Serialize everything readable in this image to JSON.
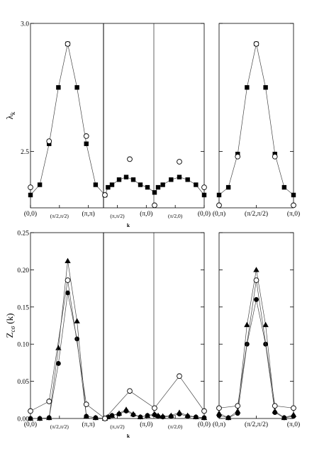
{
  "chart_data": [
    {
      "type": "scatter",
      "ylabel": "λ",
      "ylabel_sub": "k",
      "xlabel": "k",
      "ylim": [
        2.28,
        3.0
      ],
      "yticks": [
        {
          "value": 2.5,
          "label": "2.5"
        },
        {
          "value": 3.0,
          "label": "3.0"
        }
      ],
      "x_ticks_left": [
        "(0,0)",
        "(π/2,π/2)",
        "(π,π)",
        "(π,π/2)",
        "(π,0)",
        "(π/2,0)",
        "(0,0)"
      ],
      "x_ticks_right": [
        "(0,π)",
        "(π/2,π/2)",
        "(π,0)"
      ],
      "series": [
        {
          "marker": "filled-square",
          "line": true,
          "left_values": [
            2.33,
            2.37,
            2.53,
            2.75,
            2.92,
            2.75,
            2.53,
            2.37,
            2.33,
            2.36,
            2.37,
            2.39,
            2.4,
            2.39,
            2.37,
            2.36,
            2.34,
            2.36,
            2.37,
            2.39,
            2.4,
            2.39,
            2.37,
            2.33
          ],
          "right_values": [
            2.33,
            2.36,
            2.49,
            2.75,
            2.92,
            2.75,
            2.49,
            2.36,
            2.33
          ]
        },
        {
          "marker": "open-circle",
          "line": false,
          "left_points": [
            {
              "i": 0,
              "y": 2.36
            },
            {
              "i": 3,
              "y": 2.54
            },
            {
              "i": 6,
              "y": 2.92
            },
            {
              "i": 9,
              "y": 2.56
            },
            {
              "i": 12,
              "y": 2.33
            },
            {
              "i": 16,
              "y": 2.47
            },
            {
              "i": 20,
              "y": 2.29
            },
            {
              "i": 24,
              "y": 2.46
            },
            {
              "i": 28,
              "y": 2.36
            }
          ],
          "right_points": [
            {
              "i": 0,
              "y": 2.29
            },
            {
              "i": 2,
              "y": 2.48
            },
            {
              "i": 4,
              "y": 2.92
            },
            {
              "i": 6,
              "y": 2.48
            },
            {
              "i": 8,
              "y": 2.29
            }
          ]
        }
      ]
    },
    {
      "type": "scatter",
      "ylabel": "Z",
      "ylabel_sub": "cσ",
      "ylabel_suffix": "(k)",
      "xlabel": "k",
      "ylim": [
        0.0,
        0.25
      ],
      "yticks": [
        {
          "value": 0.0,
          "label": "0.00"
        },
        {
          "value": 0.05,
          "label": "0.05"
        },
        {
          "value": 0.1,
          "label": "0.10"
        },
        {
          "value": 0.15,
          "label": "0.15"
        },
        {
          "value": 0.2,
          "label": "0.20"
        },
        {
          "value": 0.25,
          "label": "0.25"
        }
      ],
      "x_ticks_left": [
        "(0,0)",
        "(π/2,π/2)",
        "(π,π)",
        "(π,π/2)",
        "(π,0)",
        "(π/2,0)",
        "(0,0)"
      ],
      "x_ticks_right": [
        "(0,π)",
        "(π/2,π/2)",
        "(π,0)"
      ],
      "series": [
        {
          "marker": "filled-triangle",
          "line": true,
          "left_values": [
            0.0,
            0.0,
            0.001,
            0.095,
            0.212,
            0.131,
            0.003,
            0.001,
            0.0,
            0.002,
            0.004,
            0.007,
            0.012,
            0.006,
            0.002,
            0.004,
            0.006,
            0.004,
            0.003,
            0.004,
            0.008,
            0.004,
            0.002,
            0.001
          ],
          "right_values": [
            0.007,
            0.001,
            0.01,
            0.126,
            0.2,
            0.126,
            0.01,
            0.001,
            0.005
          ]
        },
        {
          "marker": "filled-circle",
          "line": true,
          "left_values": [
            0.0,
            0.0,
            0.001,
            0.074,
            0.169,
            0.107,
            0.003,
            0.001,
            0.0,
            0.002,
            0.004,
            0.006,
            0.01,
            0.005,
            0.002,
            0.004,
            0.005,
            0.003,
            0.002,
            0.003,
            0.006,
            0.003,
            0.002,
            0.001
          ],
          "right_values": [
            0.004,
            0.001,
            0.007,
            0.1,
            0.16,
            0.1,
            0.008,
            0.001,
            0.003
          ]
        },
        {
          "marker": "open-circle",
          "line": true,
          "left_points": [
            {
              "i": 0,
              "y": 0.01
            },
            {
              "i": 3,
              "y": 0.023
            },
            {
              "i": 6,
              "y": 0.186
            },
            {
              "i": 9,
              "y": 0.019
            },
            {
              "i": 12,
              "y": 0.0
            },
            {
              "i": 16,
              "y": 0.037
            },
            {
              "i": 20,
              "y": 0.014
            },
            {
              "i": 24,
              "y": 0.057
            },
            {
              "i": 28,
              "y": 0.01
            }
          ],
          "right_points": [
            {
              "i": 0,
              "y": 0.014
            },
            {
              "i": 2,
              "y": 0.017
            },
            {
              "i": 4,
              "y": 0.186
            },
            {
              "i": 6,
              "y": 0.017
            },
            {
              "i": 8,
              "y": 0.014
            }
          ]
        }
      ]
    }
  ]
}
